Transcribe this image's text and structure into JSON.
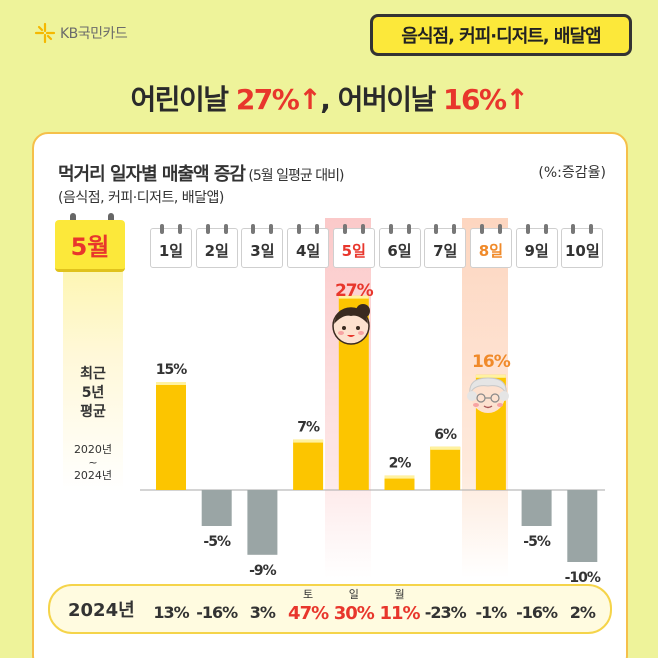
{
  "brand": {
    "name": "KB국민카드"
  },
  "category_badge": "음식점, 커피·디저트, 배달앱",
  "headline": {
    "part1": "어린이날 ",
    "hl1": "27%↑",
    "part2": ", 어버이날 ",
    "hl2": "16%↑"
  },
  "chart_title": "먹거리 일자별 매출액 증감",
  "chart_title_sub": " (5월 일평균 대비)",
  "chart_subtitle": "(음식점, 커피·디저트, 배달앱)",
  "unit_label": "(%:증감율)",
  "month_label": "5월",
  "avg_label": [
    "최근",
    "5년",
    "평균"
  ],
  "avg_years": [
    "2020년",
    "~",
    "2024년"
  ],
  "colors": {
    "positive": "#fcc500",
    "negative": "#9aa5a5",
    "red": "#e8362c",
    "orange": "#f08a2a"
  },
  "chart_data": {
    "type": "bar",
    "categories": [
      "1일",
      "2일",
      "3일",
      "4일",
      "5일",
      "6일",
      "7일",
      "8일",
      "9일",
      "10일"
    ],
    "values": [
      15,
      -5,
      -9,
      7,
      27,
      2,
      6,
      16,
      -5,
      -10
    ],
    "value_labels": [
      "15%",
      "-5%",
      "-9%",
      "7%",
      "27%",
      "2%",
      "6%",
      "16%",
      "-5%",
      "-10%"
    ],
    "highlighted": {
      "5일": "red",
      "8일": "orange"
    },
    "title": "먹거리 일자별 매출액 증감",
    "ylim": [
      -12,
      30
    ]
  },
  "year_row": {
    "label": "2024년",
    "values": [
      "13%",
      "-16%",
      "3%",
      "47%",
      "30%",
      "11%",
      "-23%",
      "-1%",
      "-16%",
      "2%"
    ],
    "weekdays": {
      "3": "토",
      "4": "일",
      "5": "월"
    },
    "red_indices": [
      3,
      4,
      5
    ]
  }
}
